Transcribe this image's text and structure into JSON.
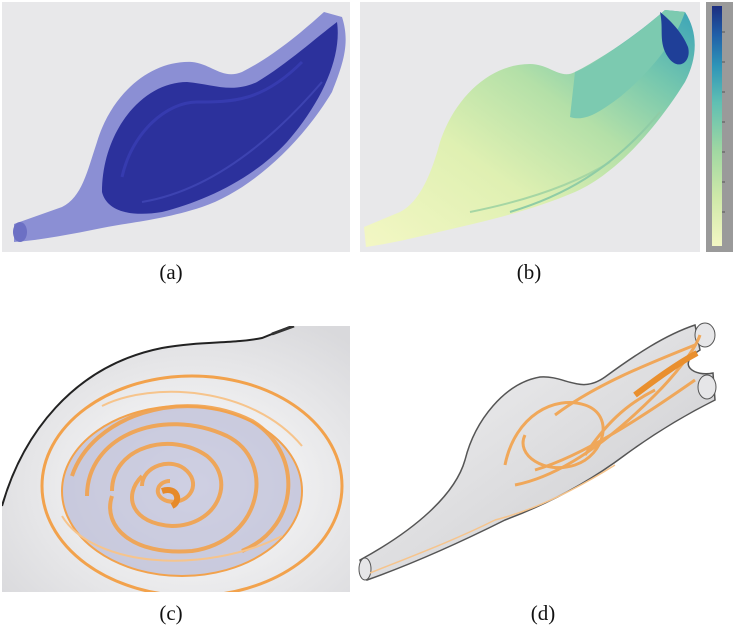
{
  "captions": {
    "a": "(a)",
    "b": "(b)",
    "c": "(c)",
    "d": "(d)"
  },
  "colors": {
    "panel_bg": "#e6e6e6",
    "translucent_surface": "#7276cc",
    "surface_core": "#2a2f9a",
    "colormap": [
      "#f3f7c4",
      "#cfe9a9",
      "#9fd7a2",
      "#5fbfb3",
      "#2e95b8",
      "#205fa8",
      "#1b2d80"
    ],
    "streamline_orange": "#f2a24c",
    "vessel_gray": "#c9c9cc"
  },
  "icons": {
    "colorbar": "colorbar-legend-icon"
  }
}
